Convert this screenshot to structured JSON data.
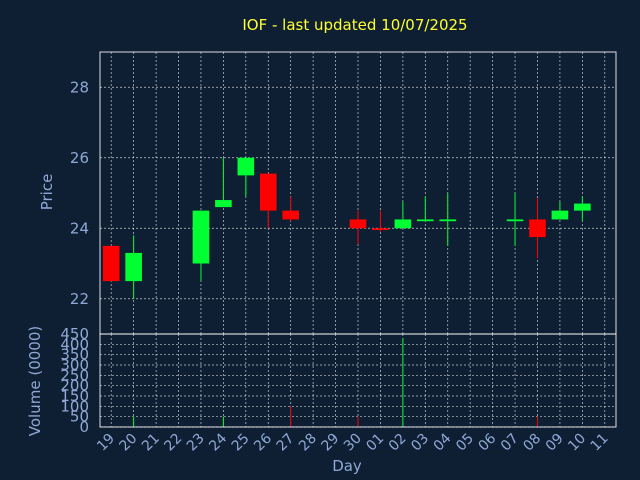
{
  "chart_data": {
    "type": "candlestick",
    "title": "IOF - last updated 10/07/2025",
    "colors": {
      "background": "#0f1f33",
      "title": "#ffff33",
      "axis_text": "#8fa8d6",
      "up": "#00ff33",
      "down": "#ff0000",
      "grid": "#ffffff"
    },
    "price_panel": {
      "ylabel": "Price",
      "ylim": [
        21.0,
        29.0
      ],
      "yticks": [
        22,
        24,
        26,
        28
      ],
      "grid": true
    },
    "volume_panel": {
      "ylabel": "Volume (0000)",
      "ylim": [
        0,
        450
      ],
      "yticks": [
        0,
        50,
        100,
        150,
        200,
        250,
        300,
        350,
        400,
        450
      ],
      "grid": true
    },
    "xlabel": "Day",
    "x_tick_labels": [
      "19",
      "20",
      "21",
      "22",
      "23",
      "24",
      "25",
      "26",
      "27",
      "28",
      "29",
      "30",
      "01",
      "02",
      "03",
      "04",
      "05",
      "06",
      "07",
      "08",
      "09",
      "10",
      "11"
    ],
    "candles": [
      {
        "day": "19",
        "open": 23.5,
        "high": 23.5,
        "low": 22.5,
        "close": 22.5,
        "volume": 0
      },
      {
        "day": "20",
        "open": 22.5,
        "high": 23.8,
        "low": 22.0,
        "close": 23.3,
        "volume": 50
      },
      {
        "day": "23",
        "open": 23.0,
        "high": 24.5,
        "low": 22.5,
        "close": 24.5,
        "volume": 0
      },
      {
        "day": "24",
        "open": 24.6,
        "high": 26.0,
        "low": 24.6,
        "close": 24.8,
        "volume": 50
      },
      {
        "day": "25",
        "open": 25.5,
        "high": 26.0,
        "low": 24.9,
        "close": 26.0,
        "volume": 0
      },
      {
        "day": "26",
        "open": 25.55,
        "high": 25.55,
        "low": 24.0,
        "close": 24.5,
        "volume": 0
      },
      {
        "day": "27",
        "open": 24.5,
        "high": 24.9,
        "low": 24.2,
        "close": 24.25,
        "volume": 100
      },
      {
        "day": "30",
        "open": 24.25,
        "high": 24.5,
        "low": 23.55,
        "close": 24.0,
        "volume": 50
      },
      {
        "day": "01",
        "open": 24.0,
        "high": 24.5,
        "low": 23.9,
        "close": 23.95,
        "volume": 0
      },
      {
        "day": "02",
        "open": 24.0,
        "high": 24.75,
        "low": 24.0,
        "close": 24.25,
        "volume": 430
      },
      {
        "day": "03",
        "open": 24.2,
        "high": 24.9,
        "low": 24.2,
        "close": 24.25,
        "volume": 0
      },
      {
        "day": "04",
        "open": 24.2,
        "high": 25.0,
        "low": 23.5,
        "close": 24.25,
        "volume": 0
      },
      {
        "day": "07",
        "open": 24.2,
        "high": 25.0,
        "low": 23.5,
        "close": 24.25,
        "volume": 0
      },
      {
        "day": "08",
        "open": 24.25,
        "high": 24.85,
        "low": 23.15,
        "close": 23.75,
        "volume": 50
      },
      {
        "day": "09",
        "open": 24.25,
        "high": 24.75,
        "low": 24.25,
        "close": 24.5,
        "volume": 0
      },
      {
        "day": "10",
        "open": 24.5,
        "high": 24.9,
        "low": 24.2,
        "close": 24.7,
        "volume": 0
      }
    ]
  }
}
